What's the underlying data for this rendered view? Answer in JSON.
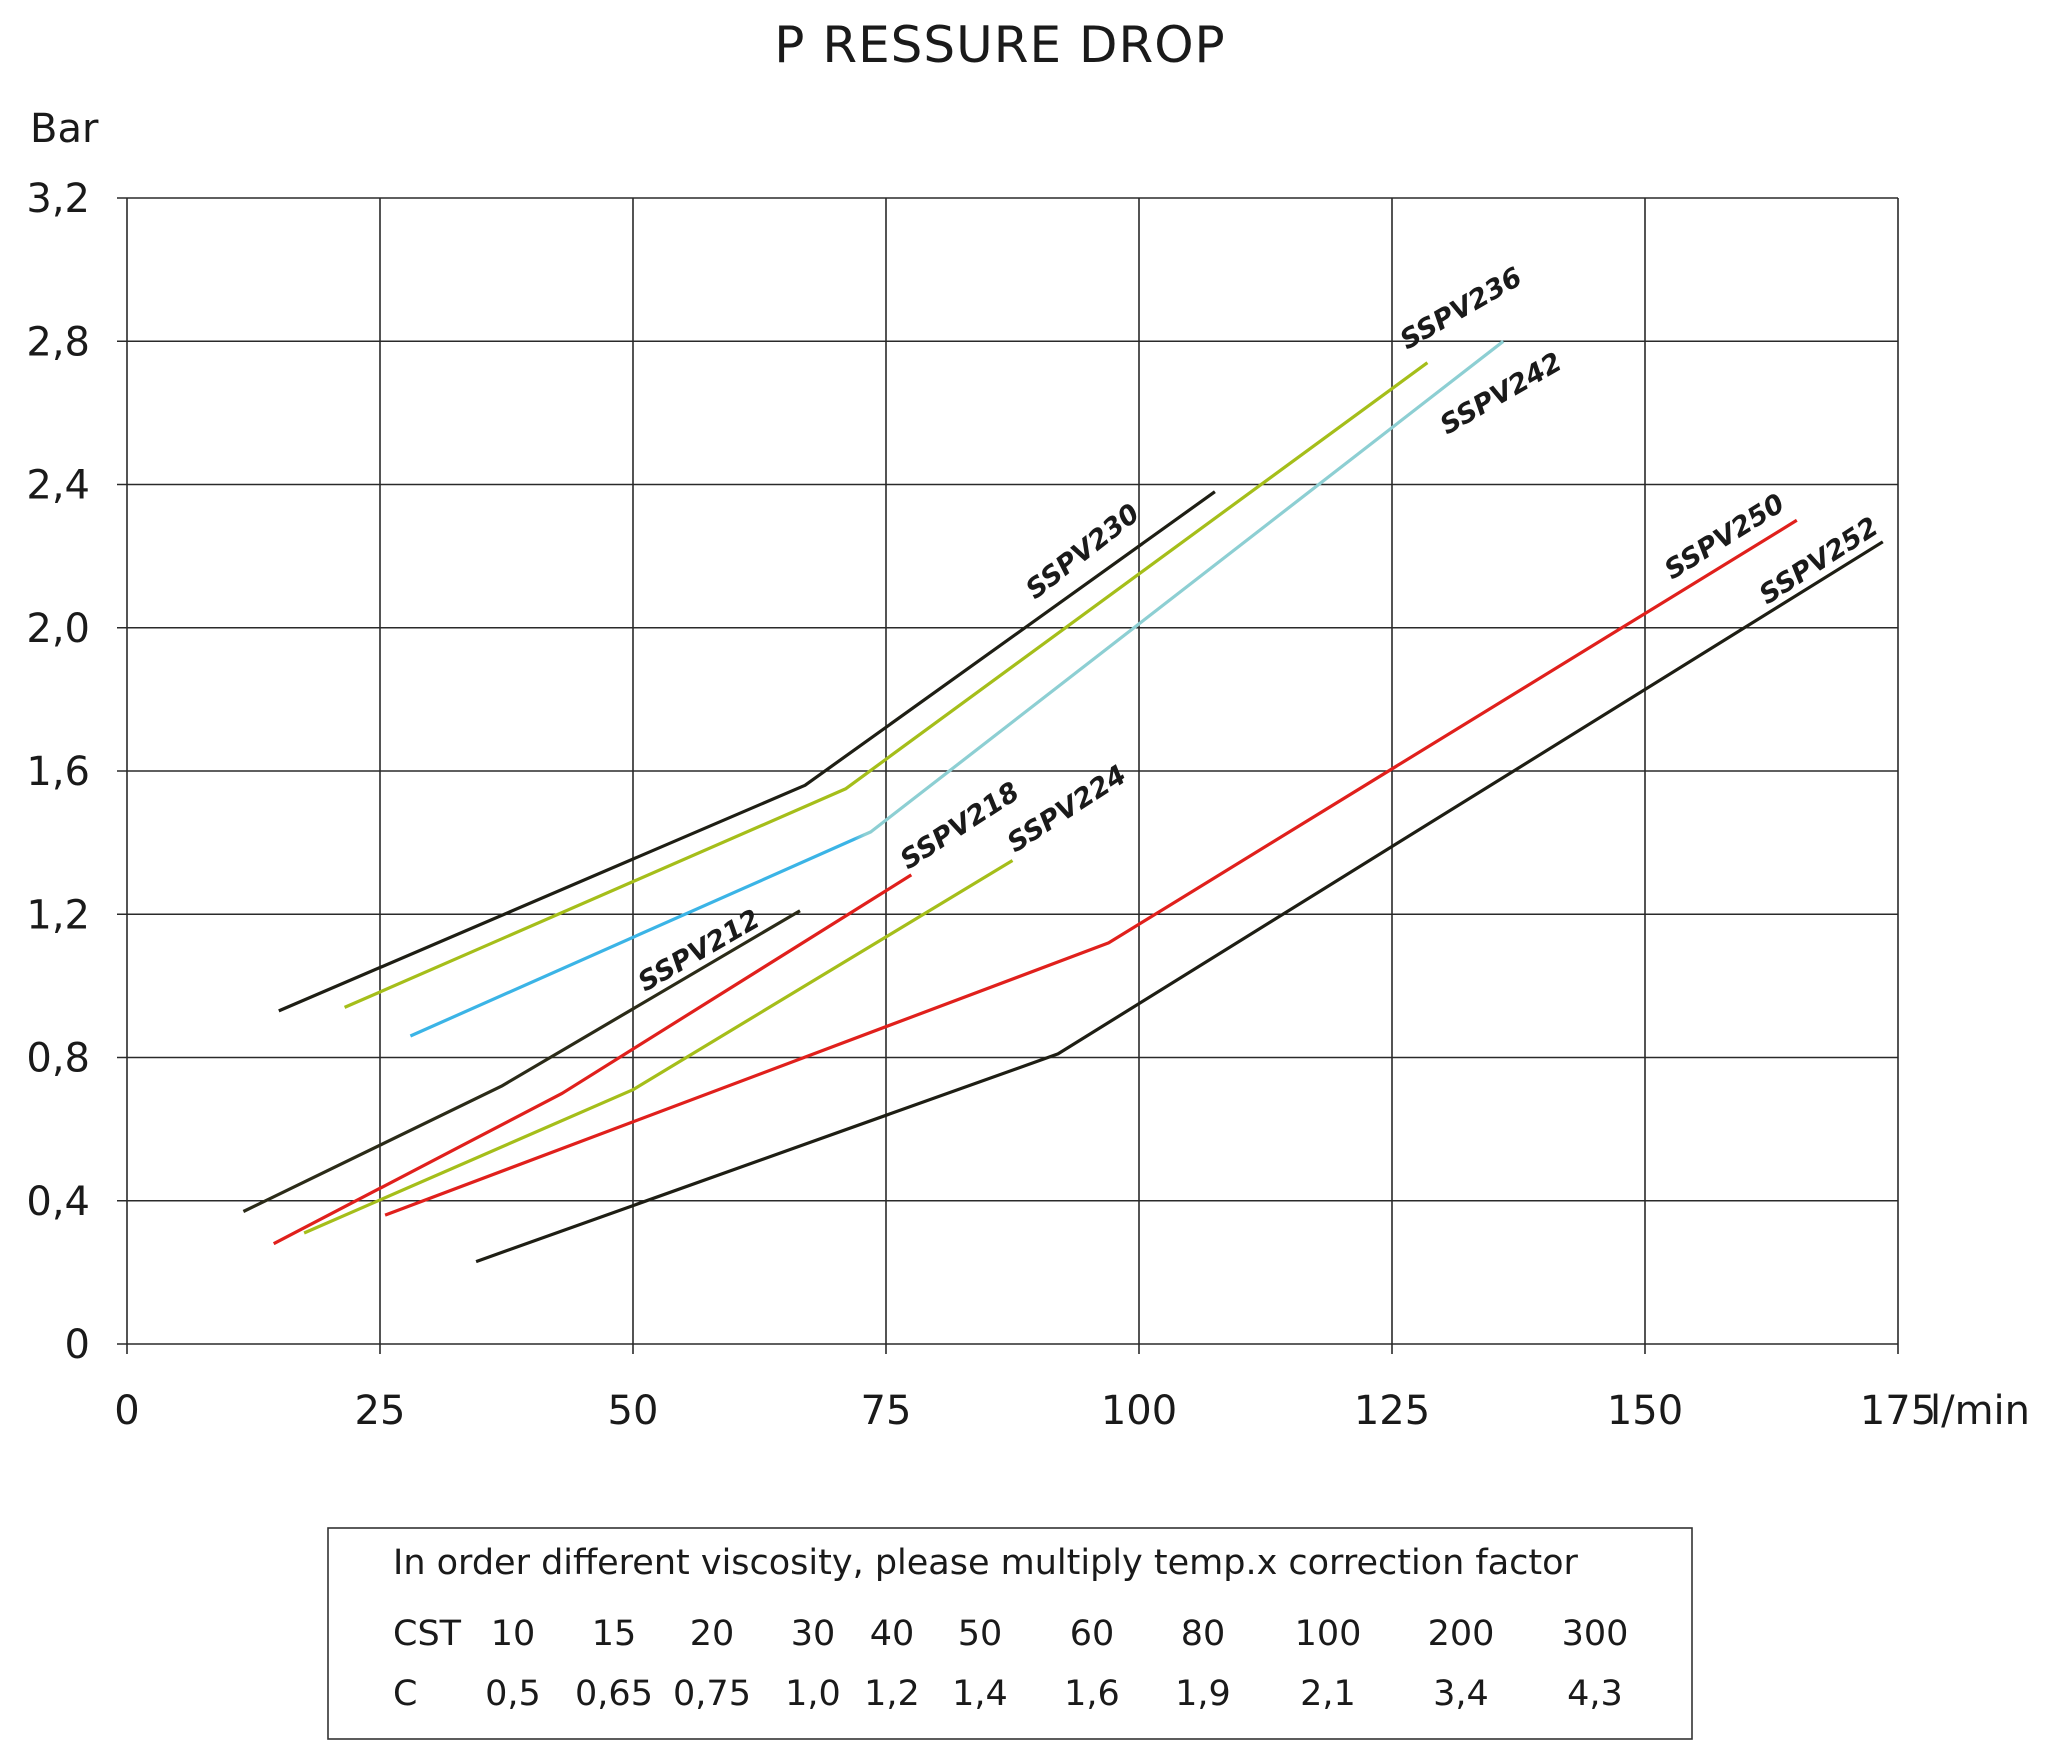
{
  "chart_data": {
    "type": "line",
    "title": "P RESSURE DROP",
    "ylabel": "Bar",
    "xlabel": "l/min",
    "xlim": [
      0,
      175
    ],
    "ylim": [
      0,
      3.2
    ],
    "x_ticks": [
      "0",
      "25",
      "50",
      "75",
      "100",
      "125",
      "150",
      "175"
    ],
    "y_ticks": [
      "0",
      "0,4",
      "0,8",
      "1,2",
      "1,6",
      "2,0",
      "2,4",
      "2,8",
      "3,2"
    ],
    "grid": true,
    "series": [
      {
        "name": "SSPV212",
        "color": "#2b2b18",
        "points": [
          [
            11.5,
            0.37
          ],
          [
            37,
            0.72
          ],
          [
            66.5,
            1.21
          ]
        ]
      },
      {
        "name": "SSPV218",
        "color": "#e0201c",
        "points": [
          [
            14.5,
            0.28
          ],
          [
            43,
            0.7
          ],
          [
            77.5,
            1.31
          ]
        ]
      },
      {
        "name": "SSPV224",
        "color": "#a5be1a",
        "points": [
          [
            17.5,
            0.31
          ],
          [
            50,
            0.71
          ],
          [
            87.5,
            1.35
          ]
        ]
      },
      {
        "name": "SSPV230",
        "color": "#1e1e14",
        "points": [
          [
            15,
            0.93
          ],
          [
            67,
            1.56
          ],
          [
            107.5,
            2.38
          ]
        ]
      },
      {
        "name": "SSPV236",
        "color": "#a5be1a",
        "points": [
          [
            21.5,
            0.94
          ],
          [
            71,
            1.55
          ],
          [
            128.5,
            2.74
          ]
        ]
      },
      {
        "name": "SSPV242",
        "color": "#3bb4e6",
        "color2": "#8dcfd3",
        "points": [
          [
            28,
            0.86
          ],
          [
            73.5,
            1.43
          ],
          [
            136,
            2.8
          ]
        ]
      },
      {
        "name": "SSPV250",
        "color": "#e0201c",
        "points": [
          [
            25.5,
            0.36
          ],
          [
            97,
            1.12
          ],
          [
            165,
            2.3
          ]
        ]
      },
      {
        "name": "SSPV252",
        "color": "#1e1e14",
        "points": [
          [
            34.5,
            0.23
          ],
          [
            92,
            0.81
          ],
          [
            173.5,
            2.24
          ]
        ]
      }
    ],
    "annotations": [
      "SSPV212",
      "SSPV218",
      "SSPV224",
      "SSPV230",
      "SSPV236",
      "SSPV242",
      "SSPV250",
      "SSPV252"
    ]
  },
  "viscosity_table": {
    "heading": "In order different viscosity, please multiply temp.x correction factor",
    "row1_label": "CST",
    "row1_values": [
      "10",
      "15",
      "20",
      "30",
      "40",
      "50",
      "60",
      "80",
      "100",
      "200",
      "300"
    ],
    "row2_label": "C",
    "row2_values": [
      "0,5",
      "0,65",
      "0,75",
      "1,0",
      "1,2",
      "1,4",
      "1,6",
      "1,9",
      "2,1",
      "3,4",
      "4,3"
    ]
  }
}
